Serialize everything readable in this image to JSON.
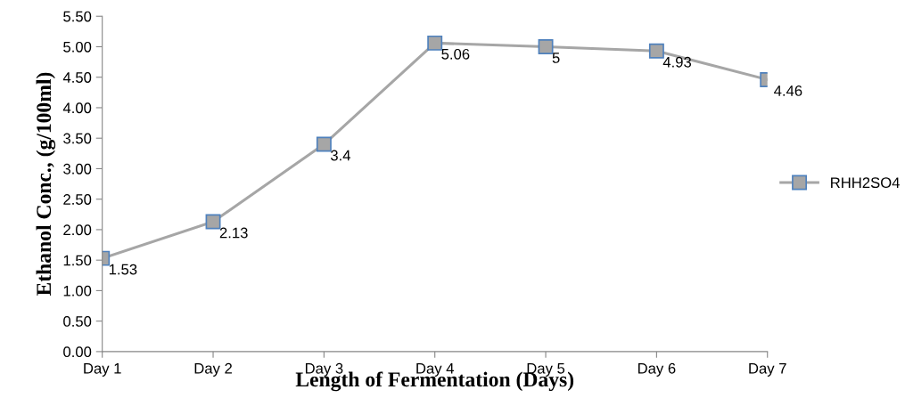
{
  "chart_data": {
    "type": "line",
    "xlabel": "Length of Fermentation (Days)",
    "ylabel": "Ethanol Conc., (g/100ml)",
    "categories": [
      "Day 1",
      "Day 2",
      "Day 3",
      "Day 4",
      "Day 5",
      "Day 6",
      "Day 7"
    ],
    "series": [
      {
        "name": "RHH2SO4",
        "color": "#a6a6a6",
        "values": [
          1.53,
          2.13,
          3.4,
          5.06,
          5,
          4.93,
          4.46
        ]
      }
    ],
    "ylim": [
      0,
      5.5
    ],
    "yticks": [
      {
        "value": 0,
        "label": "0.00"
      },
      {
        "value": 0.5,
        "label": "0.50"
      },
      {
        "value": 1,
        "label": "1.00"
      },
      {
        "value": 1.5,
        "label": "1.50"
      },
      {
        "value": 2,
        "label": "2.00"
      },
      {
        "value": 2.5,
        "label": "2.50"
      },
      {
        "value": 3,
        "label": "3.00"
      },
      {
        "value": 3.5,
        "label": "3.50"
      },
      {
        "value": 4,
        "label": "4.00"
      },
      {
        "value": 4.5,
        "label": "4.50"
      },
      {
        "value": 5,
        "label": "5.00"
      },
      {
        "value": 5.5,
        "label": "5.50"
      }
    ],
    "data_labels": true,
    "legend": "right",
    "marker": "square",
    "line_style": "solid",
    "grid": false
  }
}
